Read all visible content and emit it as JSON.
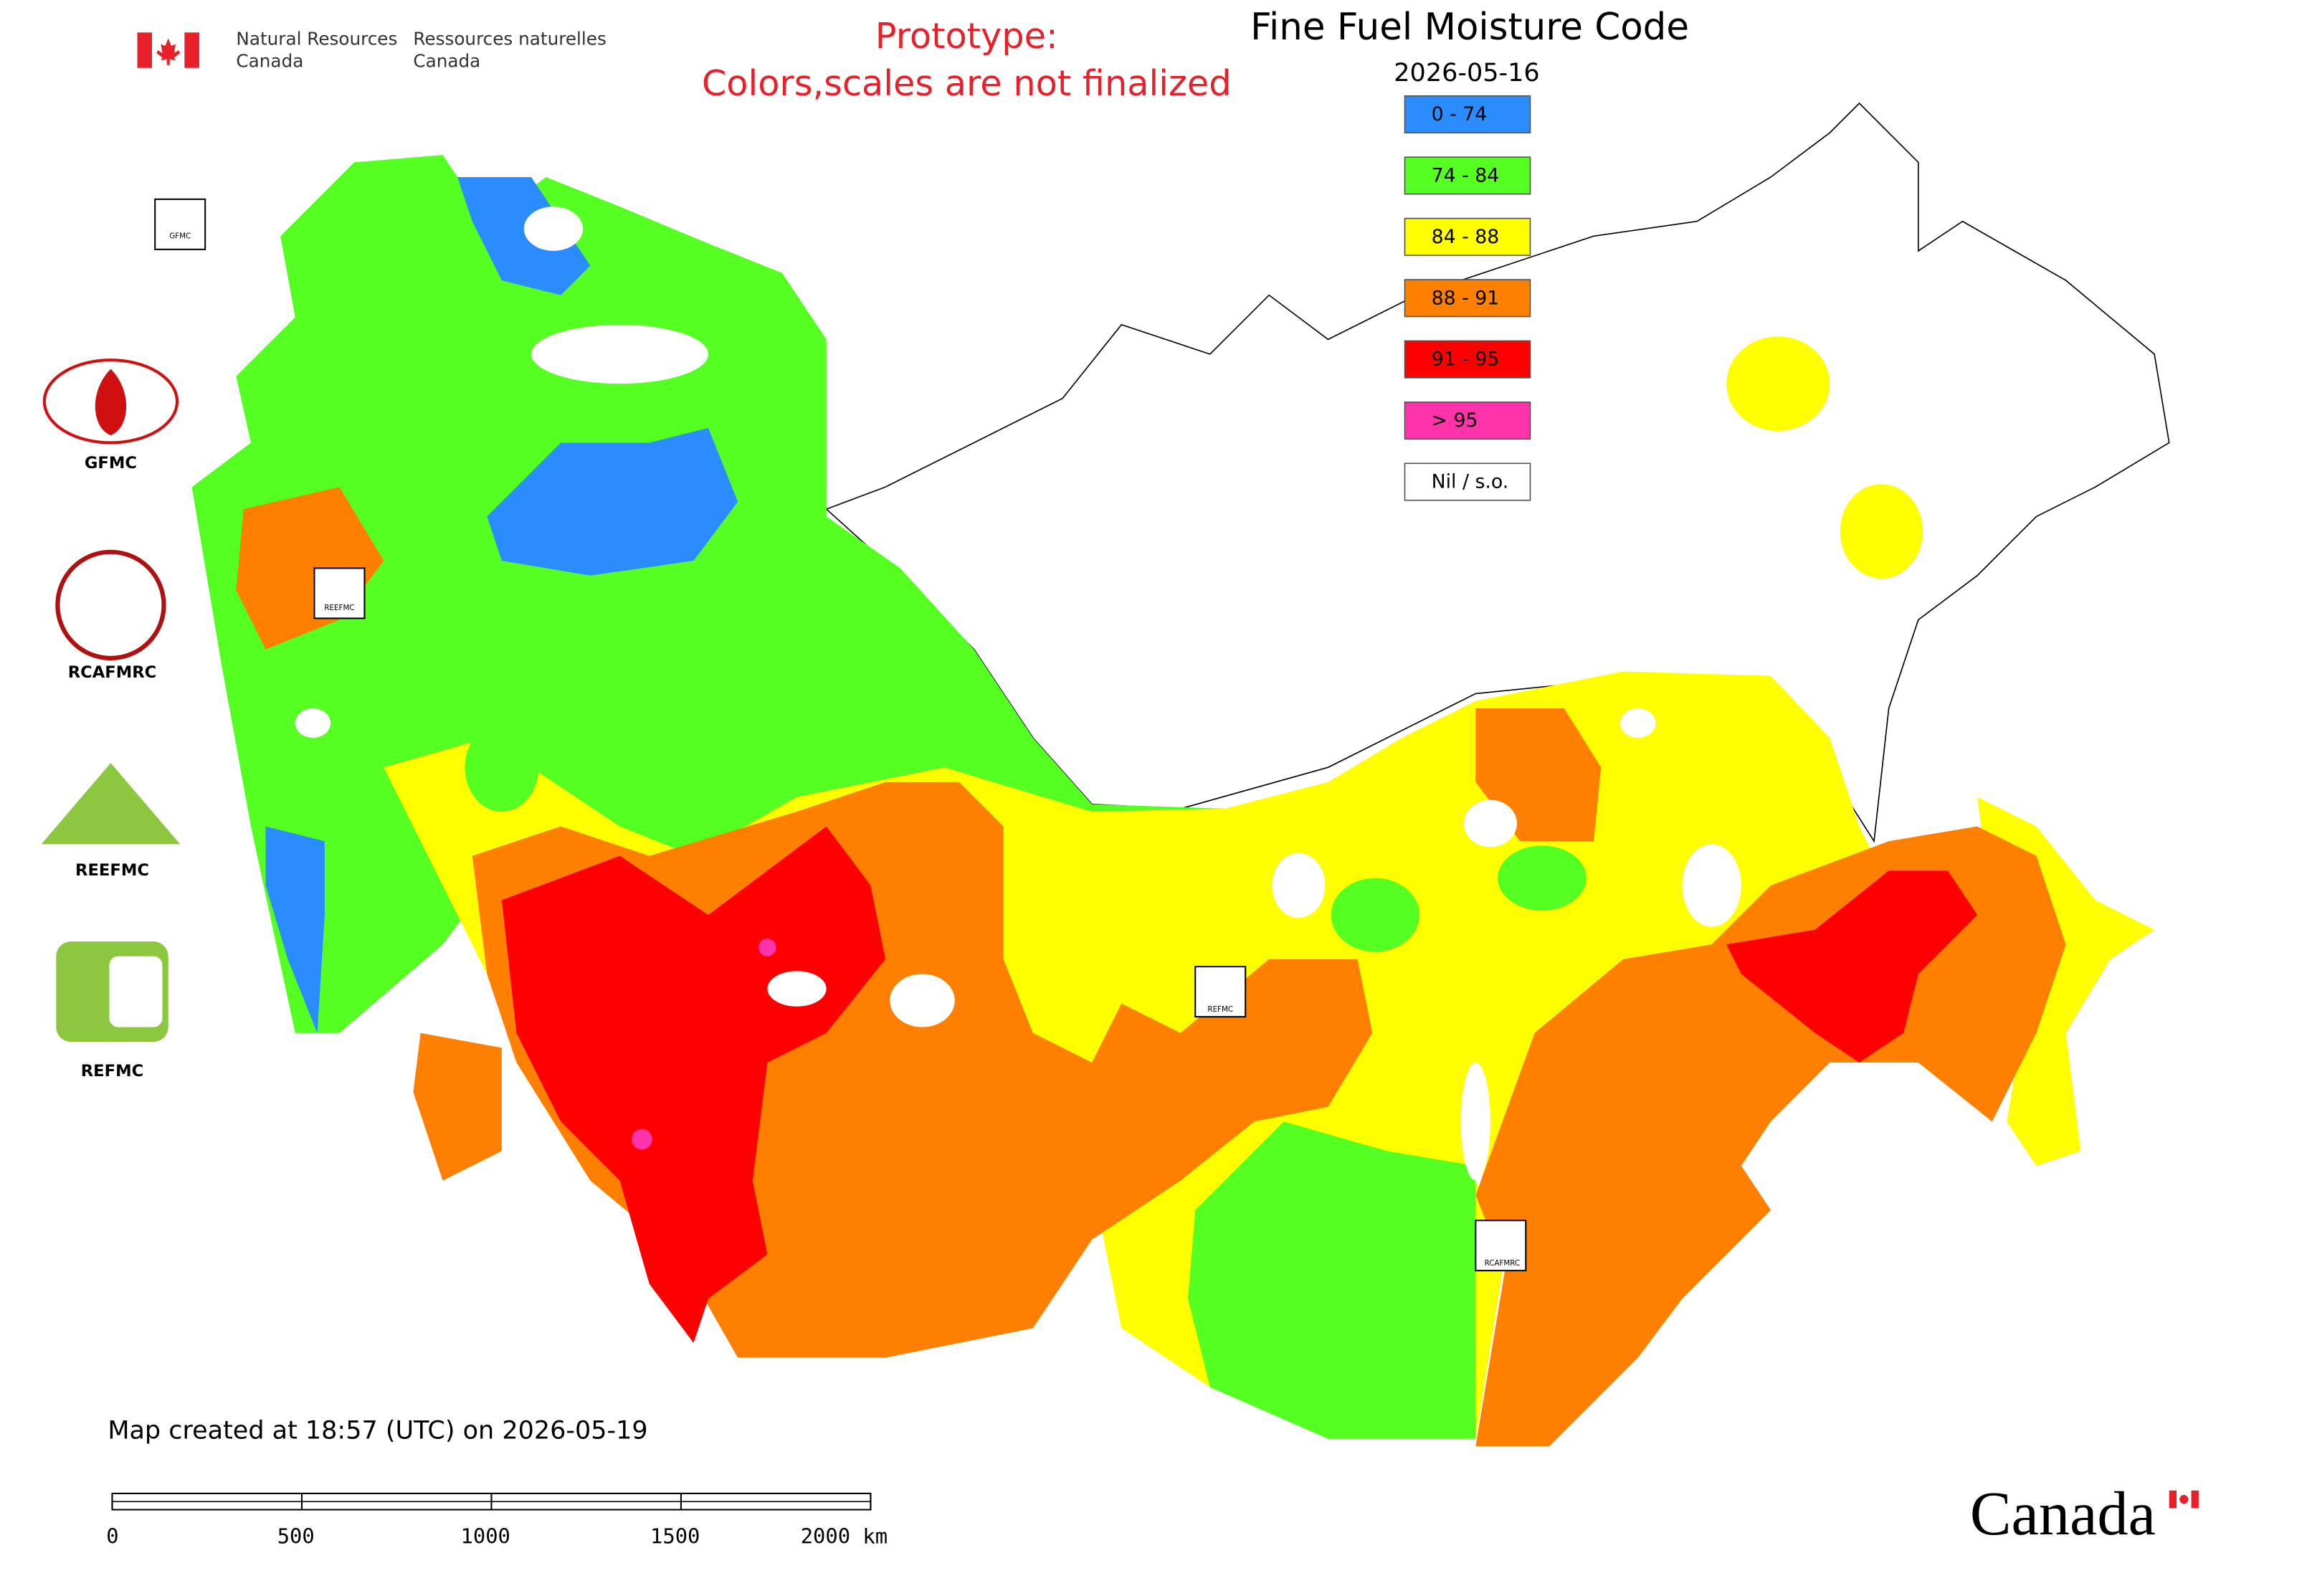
{
  "header": {
    "org_en_line1": "Natural Resources",
    "org_en_line2": "Canada",
    "org_fr_line1": "Ressources naturelles",
    "org_fr_line2": "Canada"
  },
  "notice": {
    "line1": "Prototype:",
    "line2": "Colors,scales are not finalized"
  },
  "map": {
    "title": "Fine Fuel Moisture Code",
    "date": "2026-05-16",
    "legend": [
      {
        "label": "0 - 74",
        "color": "#2b8cff"
      },
      {
        "label": "74 - 84",
        "color": "#55ff22"
      },
      {
        "label": "84 - 88",
        "color": "#ffff00"
      },
      {
        "label": "88 - 91",
        "color": "#ff8000"
      },
      {
        "label": "91 - 95",
        "color": "#ff0000"
      },
      {
        "label": "> 95",
        "color": "#ff33aa"
      },
      {
        "label": "Nil / s.o.",
        "color": "#ffffff"
      }
    ],
    "created": "Map created at 18:57 (UTC) on 2026-05-19",
    "scale_labels": [
      "0",
      "500",
      "1000",
      "1500",
      "2000 km"
    ],
    "badges": [
      "GFMC",
      "REEFMC",
      "REFMC",
      "RCAFMRC"
    ]
  },
  "logos": [
    "GFMC",
    "RCAFMRC",
    "REEFMC",
    "REFMC"
  ],
  "wordmark": "Canada"
}
